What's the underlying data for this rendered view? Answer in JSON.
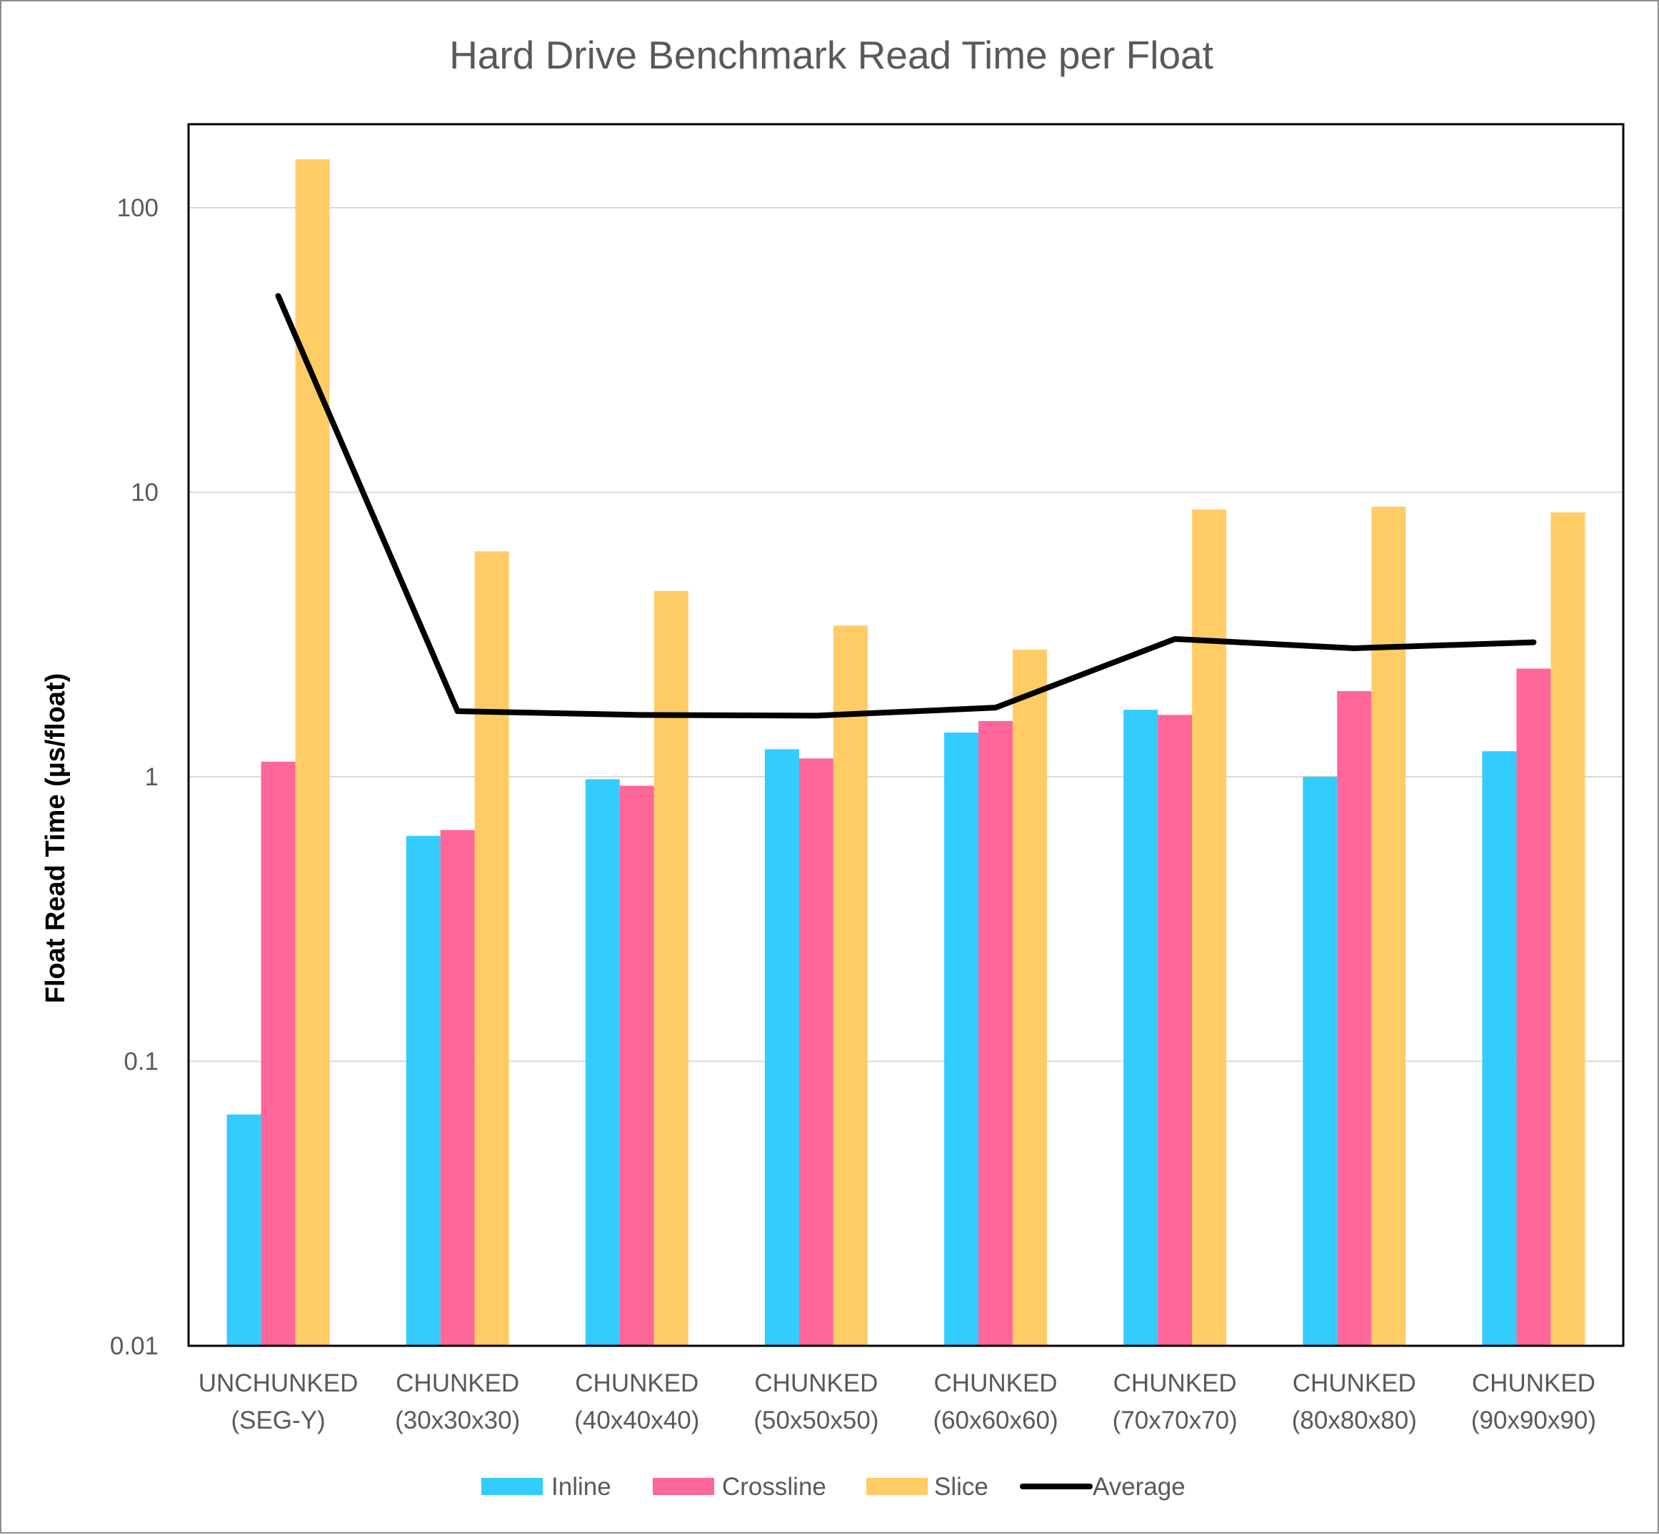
{
  "chart_data": {
    "type": "bar",
    "title": "Hard Drive Benchmark Read Time per Float",
    "xlabel": "",
    "ylabel": "Float Read Time (µs/float)",
    "yscale": "log",
    "ylim": [
      0.01,
      200
    ],
    "yticks": [
      "0.01",
      "0.1",
      "1",
      "10",
      "100"
    ],
    "grid": true,
    "legend_position": "bottom",
    "categories": [
      [
        "UNCHUNKED",
        "(SEG-Y)"
      ],
      [
        "CHUNKED",
        "(30x30x30)"
      ],
      [
        "CHUNKED",
        "(40x40x40)"
      ],
      [
        "CHUNKED",
        "(50x50x50)"
      ],
      [
        "CHUNKED",
        "(60x60x60)"
      ],
      [
        "CHUNKED",
        "(70x70x70)"
      ],
      [
        "CHUNKED",
        "(80x80x80)"
      ],
      [
        "CHUNKED",
        "(90x90x90)"
      ]
    ],
    "series": [
      {
        "name": "Inline",
        "kind": "bar",
        "color": "#33CCFF",
        "values": [
          0.065,
          0.62,
          0.98,
          1.25,
          1.43,
          1.72,
          1.0,
          1.23
        ]
      },
      {
        "name": "Crossline",
        "kind": "bar",
        "color": "#FF6699",
        "values": [
          1.13,
          0.65,
          0.93,
          1.16,
          1.57,
          1.65,
          2.0,
          2.4
        ]
      },
      {
        "name": "Slice",
        "kind": "bar",
        "color": "#FFCC66",
        "values": [
          148,
          6.2,
          4.5,
          3.4,
          2.8,
          8.7,
          8.9,
          8.5
        ]
      },
      {
        "name": "Average",
        "kind": "line",
        "color": "#000000",
        "values": [
          49,
          1.7,
          1.65,
          1.64,
          1.75,
          3.05,
          2.83,
          2.97
        ]
      }
    ]
  }
}
